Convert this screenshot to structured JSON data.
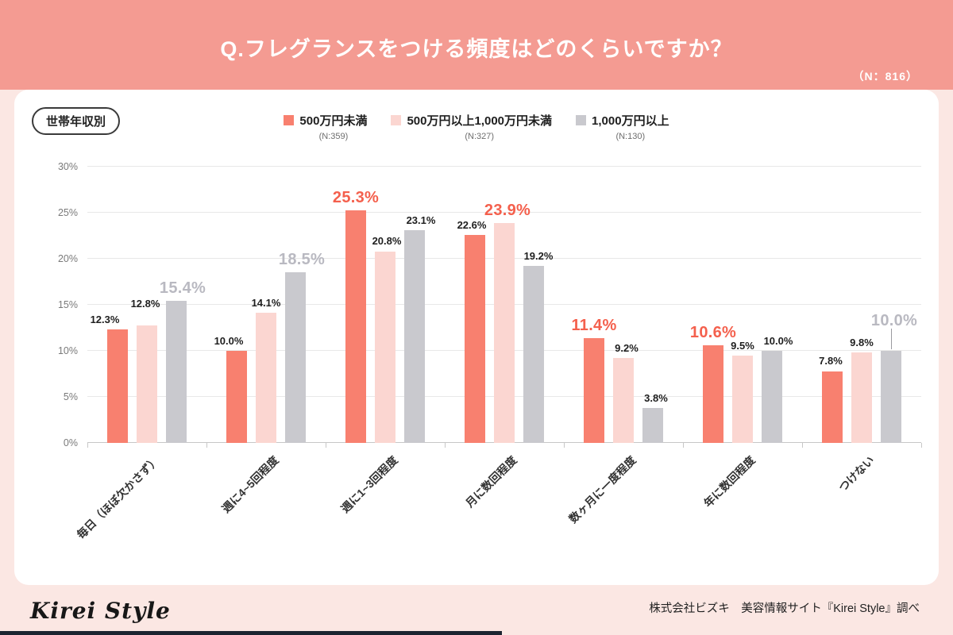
{
  "header": {
    "title": "Q.フレグランスをつける頻度はどのくらいですか？",
    "sample_size": "（N：816）"
  },
  "badge_label": "世帯年収別",
  "legend": [
    {
      "label": "500万円未満",
      "n_label": "(N:359)",
      "color": "#f8806f"
    },
    {
      "label": "500万円以上1,000万円未満",
      "n_label": "(N:327)",
      "color": "#fbd6d1"
    },
    {
      "label": "1,000万円以上",
      "n_label": "(N:130)",
      "color": "#c9c9ce"
    }
  ],
  "footer": {
    "logo_text": "Kirei Style",
    "credit": "株式会社ビズキ　美容情報サイト『Kirei Style』調べ"
  },
  "chart_data": {
    "type": "bar",
    "title": "Q.フレグランスをつける頻度はどのくらいですか？",
    "subtitle": "世帯年収別",
    "sample_size": 816,
    "categories": [
      "毎日（ほぼ欠かさず）",
      "週に4~5回程度",
      "週に1~3回程度",
      "月に数回程度",
      "数ヶ月に一度程度",
      "年に数回程度",
      "つけない"
    ],
    "series": [
      {
        "name": "500万円未満",
        "n_label": "(N:359)",
        "color": "#f8806f",
        "highlight_color": "#f4604d",
        "values": [
          12.3,
          10.0,
          25.3,
          22.6,
          11.4,
          10.6,
          7.8
        ]
      },
      {
        "name": "500万円以上1,000万円未満",
        "n_label": "(N:327)",
        "color": "#fbd6d1",
        "highlight_color": "#f4604d",
        "values": [
          12.8,
          14.1,
          20.8,
          23.9,
          9.2,
          9.5,
          9.8
        ]
      },
      {
        "name": "1,000万円以上",
        "n_label": "(N:130)",
        "color": "#c9c9ce",
        "highlight_color": "#b9b9c1",
        "values": [
          15.4,
          18.5,
          23.1,
          19.2,
          3.8,
          10.0,
          10.0
        ]
      }
    ],
    "ylim": [
      0,
      30
    ],
    "yticks": [
      "0%",
      "5%",
      "10%",
      "15%",
      "20%",
      "25%",
      "30%"
    ],
    "grid": true,
    "legend_position": "top",
    "highlight_rule": "max value per category shown enlarged",
    "label_layout": [
      [
        {
          "dx": -16
        },
        {
          "dx": -2,
          "raise": 14
        },
        {
          "dx": 8
        }
      ],
      [
        {
          "dx": -10
        },
        {
          "dx": 0
        },
        {
          "dx": 8
        }
      ],
      [
        {
          "dx": 0
        },
        {
          "dx": 2
        },
        {
          "dx": 8
        }
      ],
      [
        {
          "dx": -4
        },
        {
          "dx": 4
        },
        {
          "dx": 6
        }
      ],
      [
        {
          "dx": 0
        },
        {
          "dx": 4
        },
        {
          "dx": 4
        }
      ],
      [
        {
          "dx": 0
        },
        {
          "dx": 0
        },
        {
          "dx": 8
        }
      ],
      [
        {
          "dx": -2
        },
        {
          "dx": 0
        },
        {
          "dx": 4,
          "raise": 22,
          "leader": true
        }
      ]
    ]
  }
}
